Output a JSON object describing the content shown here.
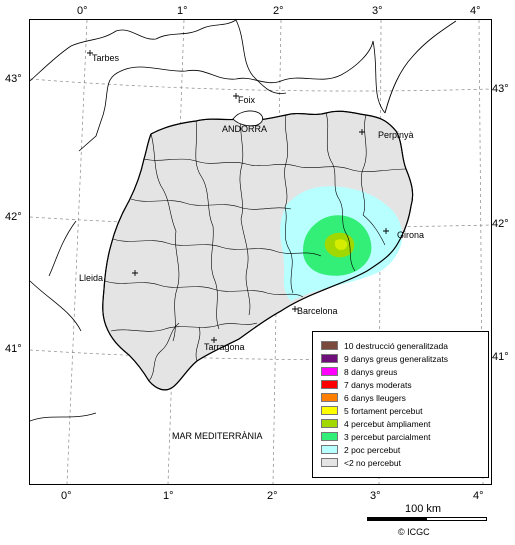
{
  "map": {
    "top_ticks": [
      "0°",
      "1°",
      "2°",
      "3°",
      "4°"
    ],
    "bottom_ticks": [
      "0°",
      "1°",
      "2°",
      "3°",
      "4°"
    ],
    "left_ticks": [
      "43°",
      "42°",
      "41°"
    ],
    "right_ticks": [
      "43°",
      "42°",
      "41°"
    ],
    "places": {
      "tarbes": "Tarbes",
      "foix": "Foix",
      "andorra": "ANDORRA",
      "perpinya": "Perpinyà",
      "girona": "Girona",
      "lleida": "Lleida",
      "barcelona": "Barcelona",
      "tarragona": "Tarragona",
      "sea": "MAR MEDITERRÀNIA"
    }
  },
  "legend": {
    "items": [
      {
        "label": "10 destrucció generalitzada",
        "color": "#7b4a3f"
      },
      {
        "label": "9 danys greus generalitzats",
        "color": "#6e0f7a"
      },
      {
        "label": "8 danys greus",
        "color": "#ff00ff"
      },
      {
        "label": "7 danys moderats",
        "color": "#ff0000"
      },
      {
        "label": "6 danys lleugers",
        "color": "#ff8000"
      },
      {
        "label": "5 fortament percebut",
        "color": "#ffff00"
      },
      {
        "label": "4 percebut àmpliament",
        "color": "#a0d800"
      },
      {
        "label": "3 percebut parcialment",
        "color": "#33ee77"
      },
      {
        "label": "2 poc percebut",
        "color": "#b8ffff"
      },
      {
        "label": "<2 no percebut",
        "color": "#e4e4e4"
      }
    ]
  },
  "scale": {
    "label": "100 km"
  },
  "credit": {
    "label": "© ICGC"
  }
}
